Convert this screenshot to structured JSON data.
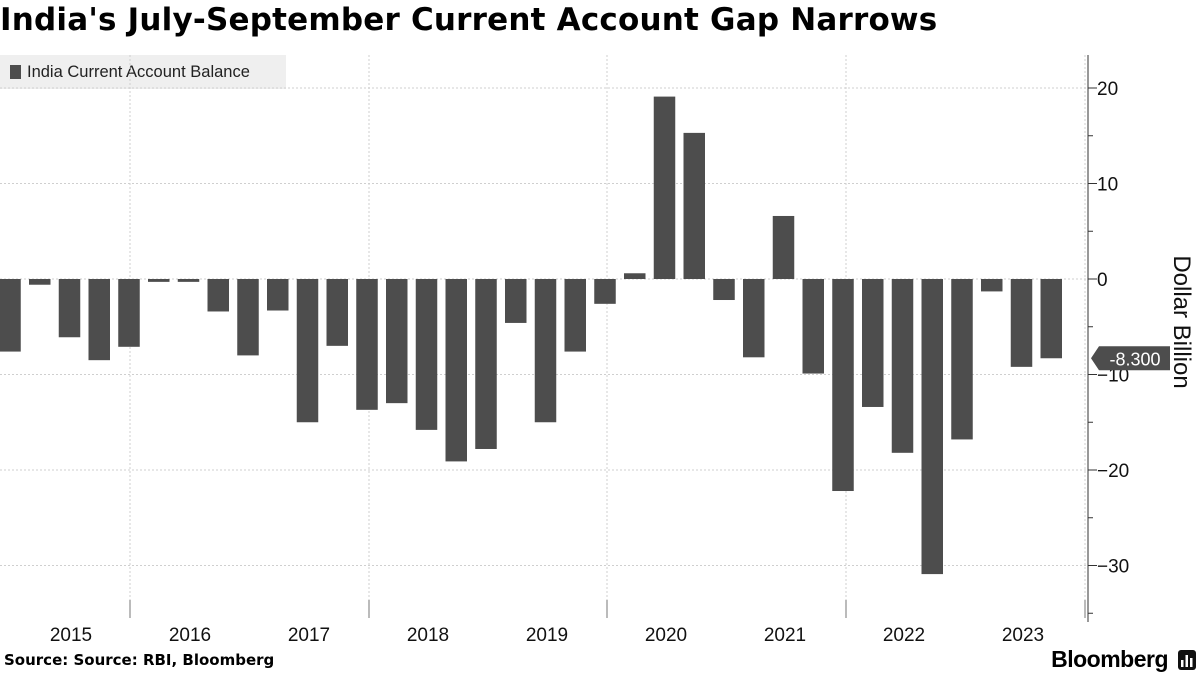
{
  "title": "India's July-September Current Account Gap Narrows",
  "source": "Source: Source: RBI, Bloomberg",
  "brand": "Bloomberg",
  "colors": {
    "bar": "#4d4d4d",
    "grid": "#cfcfcf",
    "legend_bg": "#efefef"
  },
  "chart_data": {
    "type": "bar",
    "title": "India's July-September Current Account Gap Narrows",
    "ylabel": "Dollar Billion",
    "xlabel": "",
    "ylim": [
      -35,
      24
    ],
    "yticks": [
      20,
      10,
      0,
      -10,
      -20,
      -30
    ],
    "grid": true,
    "legend_position": "top-left",
    "year_labels": [
      "2015",
      "2016",
      "2017",
      "2018",
      "2019",
      "2020",
      "2021",
      "2022",
      "2023"
    ],
    "callout": "-8.300",
    "series": [
      {
        "name": "India Current Account Balance",
        "categories": [
          "2015-Q1",
          "2015-Q2",
          "2015-Q3",
          "2015-Q4",
          "2016-Q1",
          "2016-Q2",
          "2016-Q3",
          "2016-Q4",
          "2017-Q1",
          "2017-Q2",
          "2017-Q3",
          "2017-Q4",
          "2018-Q1",
          "2018-Q2",
          "2018-Q3",
          "2018-Q4",
          "2019-Q1",
          "2019-Q2",
          "2019-Q3",
          "2019-Q4",
          "2020-Q1",
          "2020-Q2",
          "2020-Q3",
          "2020-Q4",
          "2021-Q1",
          "2021-Q2",
          "2021-Q3",
          "2021-Q4",
          "2022-Q1",
          "2022-Q2",
          "2022-Q3",
          "2022-Q4",
          "2023-Q1",
          "2023-Q2",
          "2023-Q3",
          "2023-Q4",
          "2024-Q1"
        ],
        "values": [
          -7.6,
          -0.6,
          -6.1,
          -8.5,
          -7.1,
          -0.3,
          -0.3,
          -3.4,
          -8.0,
          -3.3,
          -15.0,
          -7.0,
          -13.7,
          -13.0,
          -15.8,
          -19.1,
          -17.8,
          -4.6,
          -15.0,
          -7.6,
          -2.6,
          0.6,
          19.1,
          15.3,
          -2.2,
          -8.2,
          6.6,
          -9.9,
          -22.2,
          -13.4,
          -18.2,
          -30.9,
          -16.8,
          -1.3,
          -9.2,
          -8.3,
          0
        ]
      }
    ]
  }
}
